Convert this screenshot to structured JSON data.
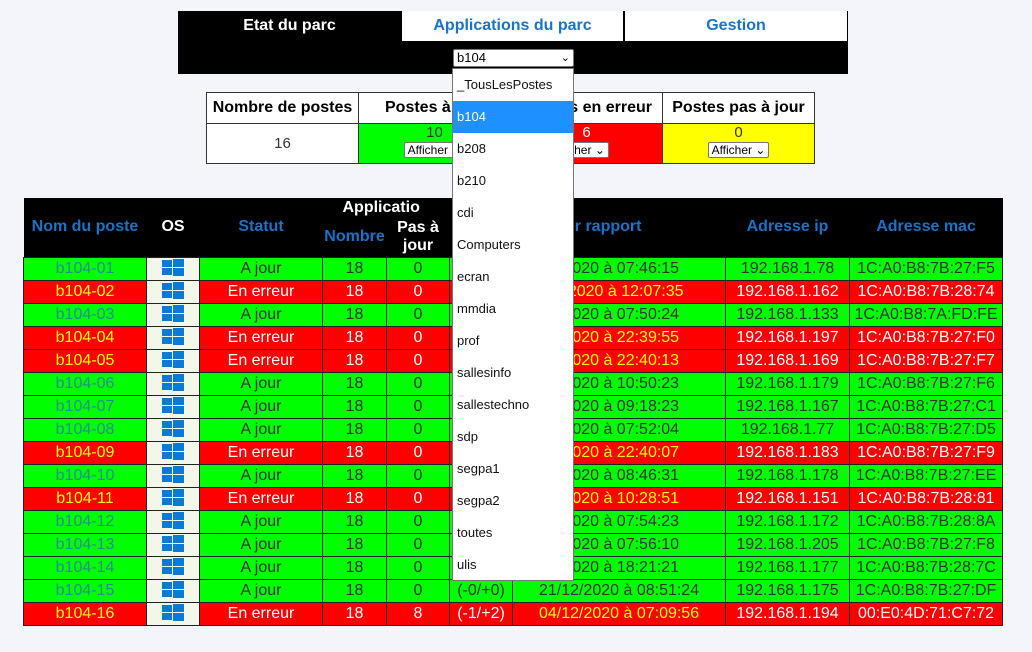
{
  "nav": {
    "tabs": [
      {
        "label": "Etat du parc"
      },
      {
        "label": "Applications du parc"
      },
      {
        "label": "Gestion"
      }
    ],
    "parc_select": {
      "value": "b104"
    }
  },
  "dropdown": {
    "options": [
      "_TousLesPostes",
      "b104",
      "b208",
      "b210",
      "cdi",
      "Computers",
      "ecran",
      "mmdia",
      "prof",
      "sallesinfo",
      "sallestechno",
      "sdp",
      "segpa1",
      "segpa2",
      "toutes",
      "ulis"
    ],
    "selected": "b104"
  },
  "summary": {
    "headers": [
      "Nombre de postes",
      "Postes à",
      "s en erreur",
      "Postes pas à jour"
    ],
    "nombre": "16",
    "a_jour": {
      "count": "10",
      "button": "Afficher"
    },
    "en_erreur": {
      "count": "6",
      "button": "cher"
    },
    "pas_a_jour": {
      "count": "0",
      "button": "Afficher"
    }
  },
  "table": {
    "headers": {
      "nom": "Nom du poste",
      "os": "OS",
      "statut": "Statut",
      "applications": "Applicatio",
      "nombre": "Nombre",
      "pas_a_jour": "Pas à jour",
      "date": "u dernier rapport",
      "ip": "Adresse ip",
      "mac": "Adresse mac"
    },
    "rows": [
      {
        "status": "ok",
        "name": "b104-01",
        "statut": "A jour",
        "nombre": "18",
        "pas": "0",
        "delta": "",
        "date": "/2020 à 07:46:15",
        "ip": "192.168.1.78",
        "mac": "1C:A0:B8:7B:27:F5"
      },
      {
        "status": "err",
        "name": "b104-02",
        "statut": "En erreur",
        "nombre": "18",
        "pas": "0",
        "delta": "",
        "date": "4/2020 à 12:07:35",
        "ip": "192.168.1.162",
        "mac": "1C:A0:B8:7B:28:74"
      },
      {
        "status": "ok",
        "name": "b104-03",
        "statut": "A jour",
        "nombre": "18",
        "pas": "0",
        "delta": "",
        "date": "/2020 à 07:50:24",
        "ip": "192.168.1.133",
        "mac": "1C:A0:B8:7A:FD:FE"
      },
      {
        "status": "err",
        "name": "b104-04",
        "statut": "En erreur",
        "nombre": "18",
        "pas": "0",
        "delta": "",
        "date": "/2020 à 22:39:55",
        "ip": "192.168.1.197",
        "mac": "1C:A0:B8:7B:27:F0"
      },
      {
        "status": "err",
        "name": "b104-05",
        "statut": "En erreur",
        "nombre": "18",
        "pas": "0",
        "delta": "",
        "date": "/2020 à 22:40:13",
        "ip": "192.168.1.169",
        "mac": "1C:A0:B8:7B:27:F7"
      },
      {
        "status": "ok",
        "name": "b104-06",
        "statut": "A jour",
        "nombre": "18",
        "pas": "0",
        "delta": "",
        "date": "/2020 à 10:50:23",
        "ip": "192.168.1.179",
        "mac": "1C:A0:B8:7B:27:F6"
      },
      {
        "status": "ok",
        "name": "b104-07",
        "statut": "A jour",
        "nombre": "18",
        "pas": "0",
        "delta": "",
        "date": "/2020 à 09:18:23",
        "ip": "192.168.1.167",
        "mac": "1C:A0:B8:7B:27:C1"
      },
      {
        "status": "ok",
        "name": "b104-08",
        "statut": "A jour",
        "nombre": "18",
        "pas": "0",
        "delta": "",
        "date": "/2020 à 07:52:04",
        "ip": "192.168.1.77",
        "mac": "1C:A0:B8:7B:27:D5"
      },
      {
        "status": "err",
        "name": "b104-09",
        "statut": "En erreur",
        "nombre": "18",
        "pas": "0",
        "delta": "",
        "date": "/2020 à 22:40:07",
        "ip": "192.168.1.183",
        "mac": "1C:A0:B8:7B:27:F9"
      },
      {
        "status": "ok",
        "name": "b104-10",
        "statut": "A jour",
        "nombre": "18",
        "pas": "0",
        "delta": "",
        "date": "/2020 à 08:46:31",
        "ip": "192.168.1.178",
        "mac": "1C:A0:B8:7B:27:EE"
      },
      {
        "status": "err",
        "name": "b104-11",
        "statut": "En erreur",
        "nombre": "18",
        "pas": "0",
        "delta": "",
        "date": "/2020 à 10:28:51",
        "ip": "192.168.1.151",
        "mac": "1C:A0:B8:7B:28:81"
      },
      {
        "status": "ok",
        "name": "b104-12",
        "statut": "A jour",
        "nombre": "18",
        "pas": "0",
        "delta": "",
        "date": "/2020 à 07:54:23",
        "ip": "192.168.1.172",
        "mac": "1C:A0:B8:7B:28:8A"
      },
      {
        "status": "ok",
        "name": "b104-13",
        "statut": "A jour",
        "nombre": "18",
        "pas": "0",
        "delta": "",
        "date": "/2020 à 07:56:10",
        "ip": "192.168.1.205",
        "mac": "1C:A0:B8:7B:27:F8"
      },
      {
        "status": "ok",
        "name": "b104-14",
        "statut": "A jour",
        "nombre": "18",
        "pas": "0",
        "delta": "",
        "date": "/2020 à 18:21:21",
        "ip": "192.168.1.177",
        "mac": "1C:A0:B8:7B:28:7C"
      },
      {
        "status": "ok",
        "name": "b104-15",
        "statut": "A jour",
        "nombre": "18",
        "pas": "0",
        "delta": "(-0/+0)",
        "date": "21/12/2020 à 08:51:24",
        "ip": "192.168.1.175",
        "mac": "1C:A0:B8:7B:27:DF"
      },
      {
        "status": "err",
        "name": "b104-16",
        "statut": "En erreur",
        "nombre": "18",
        "pas": "8",
        "delta": "(-1/+2)",
        "date": "04/12/2020 à 07:09:56",
        "ip": "192.168.1.194",
        "mac": "00:E0:4D:71:C7:72"
      }
    ]
  },
  "colors": {
    "ok": "#00ff00",
    "error": "#ff0000",
    "warning": "#ffff00",
    "header_link": "#1a73c6",
    "select_highlight": "#1e90ff"
  },
  "icons": {
    "os": "windows-icon"
  }
}
